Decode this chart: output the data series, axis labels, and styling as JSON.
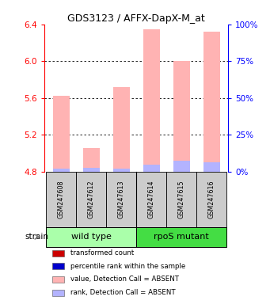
{
  "title": "GDS3123 / AFFX-DapX-M_at",
  "samples": [
    "GSM247608",
    "GSM247612",
    "GSM247613",
    "GSM247614",
    "GSM247615",
    "GSM247616"
  ],
  "ylim": [
    4.8,
    6.4
  ],
  "yticks": [
    4.8,
    5.2,
    5.6,
    6.0,
    6.4
  ],
  "y2ticks": [
    0,
    25,
    50,
    75,
    100
  ],
  "y2lim": [
    0,
    100
  ],
  "bar_bottom": 4.8,
  "value_bars": [
    5.62,
    5.06,
    5.72,
    6.35,
    6.0,
    6.32
  ],
  "rank_bars_pct": [
    2.0,
    2.5,
    2.0,
    4.5,
    7.5,
    6.5
  ],
  "detection_call": [
    "ABSENT",
    "ABSENT",
    "ABSENT",
    "ABSENT",
    "ABSENT",
    "ABSENT"
  ],
  "bar_color_value_absent": "#ffb3b3",
  "bar_color_rank_absent": "#b3b3ff",
  "bar_width": 0.55,
  "wt_color": "#aaffaa",
  "rpos_color": "#44dd44",
  "sample_box_color": "#cccccc",
  "legend_items": [
    {
      "label": "transformed count",
      "color": "#cc0000"
    },
    {
      "label": "percentile rank within the sample",
      "color": "#0000cc"
    },
    {
      "label": "value, Detection Call = ABSENT",
      "color": "#ffb3b3"
    },
    {
      "label": "rank, Detection Call = ABSENT",
      "color": "#b3b3ff"
    }
  ]
}
